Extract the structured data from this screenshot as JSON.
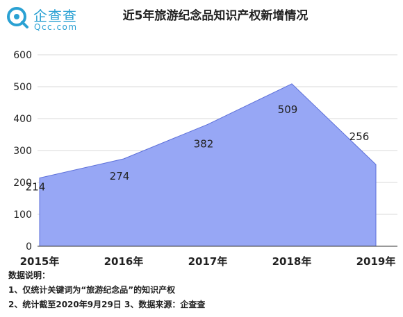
{
  "logo": {
    "name": "企查查",
    "domain": "Qcc.com"
  },
  "chart_data": {
    "type": "area",
    "title": "近5年旅游纪念品知识产权新增情况",
    "categories": [
      "2015年",
      "2016年",
      "2017年",
      "2018年",
      "2019年"
    ],
    "series": [
      {
        "values": [
          214,
          274,
          382,
          509,
          256
        ]
      }
    ],
    "ylim": [
      0,
      600
    ],
    "yticks": [
      "0",
      "100",
      "200",
      "300",
      "400",
      "500",
      "600"
    ],
    "grid": true,
    "colors": {
      "fill": "#97a7f5",
      "stroke": "#5c6fd9",
      "grid": "#d9d9d9"
    }
  },
  "notes": {
    "heading": "数据说明：",
    "line1": "1、仅统计关键词为“旅游纪念品”的知识产权",
    "line2": "2、统计截至2020年9月29日 3、数据来源：企查查"
  }
}
